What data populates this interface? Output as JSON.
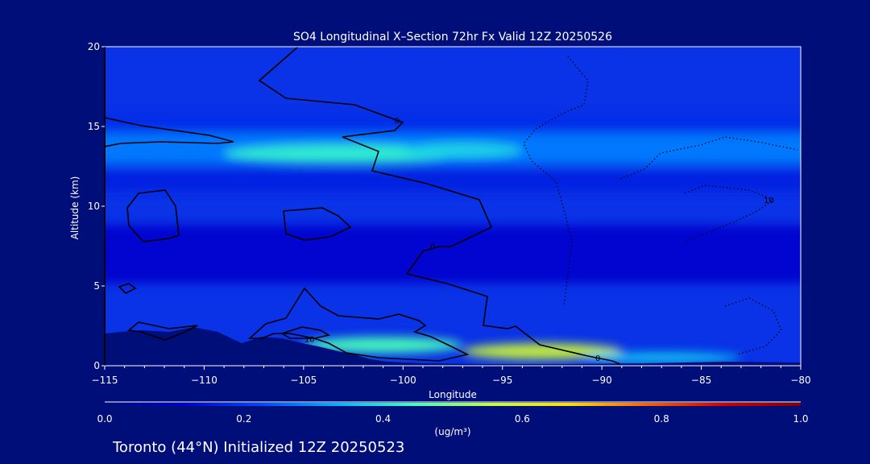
{
  "chart_data": {
    "type": "heatmap",
    "title": "SO4 Longitudinal X–Section 72hr  Fx Valid 12Z 20250526",
    "xlabel": "Longitude",
    "ylabel": "Altitude (km)",
    "xlim": [
      -115,
      -80
    ],
    "ylim": [
      0,
      20
    ],
    "x_ticks": [
      -115,
      -110,
      -105,
      -100,
      -95,
      -90,
      -85,
      -80
    ],
    "x_tick_labels": [
      "−115",
      "−110",
      "−105",
      "−100",
      "−95",
      "−90",
      "−85",
      "−80"
    ],
    "y_ticks": [
      0,
      5,
      10,
      15,
      20
    ],
    "y_tick_labels": [
      "0",
      "5",
      "10",
      "15",
      "20"
    ],
    "colorbar": {
      "label": "(ug/m³)",
      "min": 0.0,
      "max": 1.0,
      "tick_values": [
        0.0,
        0.2,
        0.4,
        0.6,
        0.8,
        1.0
      ],
      "tick_labels": [
        "0.0",
        "0.2",
        "0.4",
        "0.6",
        "0.8",
        "1.0"
      ],
      "colors": [
        "#000e7a",
        "#0000c8",
        "#0046ff",
        "#00b4ff",
        "#40ffc0",
        "#c0ff40",
        "#ffe000",
        "#ff6000",
        "#d00000",
        "#800000"
      ]
    },
    "background_color": "#000e7a",
    "concentration_features": [
      {
        "kind": "layer",
        "lon": [
          -115,
          -80
        ],
        "alt_center": 13.6,
        "alt_halfwidth": 1.0,
        "value": 0.28
      },
      {
        "kind": "blob",
        "lon_center": -103,
        "alt_center": 13.3,
        "lon_radius": 6,
        "alt_radius": 0.6,
        "value": 0.42
      },
      {
        "kind": "blob",
        "lon_center": -97,
        "alt_center": 13.5,
        "lon_radius": 3,
        "alt_radius": 0.5,
        "value": 0.38
      },
      {
        "kind": "layer",
        "lon": [
          -115,
          -80
        ],
        "alt_center": 15.2,
        "alt_halfwidth": 0.5,
        "value": 0.18
      },
      {
        "kind": "layer",
        "lon": [
          -115,
          -80
        ],
        "alt_center": 11.6,
        "alt_halfwidth": 0.6,
        "value": 0.16
      },
      {
        "kind": "layer",
        "lon": [
          -115,
          -80
        ],
        "alt_center": 7.0,
        "alt_halfwidth": 1.8,
        "value": 0.12
      },
      {
        "kind": "blob",
        "lon_center": -101,
        "alt_center": 1.3,
        "lon_radius": 4,
        "alt_radius": 0.5,
        "value": 0.45
      },
      {
        "kind": "blob",
        "lon_center": -93,
        "alt_center": 0.9,
        "lon_radius": 4,
        "alt_radius": 0.5,
        "value": 0.58
      },
      {
        "kind": "blob",
        "lon_center": -87,
        "alt_center": 0.5,
        "lon_radius": 4,
        "alt_radius": 0.35,
        "value": 0.36
      }
    ],
    "contour_labels": [
      {
        "text": "0",
        "lon": -100.3,
        "alt": 15.4
      },
      {
        "text": "0",
        "lon": -98.5,
        "alt": 7.5
      },
      {
        "text": "0",
        "lon": -90.2,
        "alt": 0.5
      },
      {
        "text": "10",
        "lon": -104.7,
        "alt": 1.7
      },
      {
        "text": "10",
        "lon": -81.6,
        "alt": 10.4
      }
    ]
  },
  "footer": {
    "station_text": "Toronto (44°N) Initialized 12Z 20250523"
  }
}
